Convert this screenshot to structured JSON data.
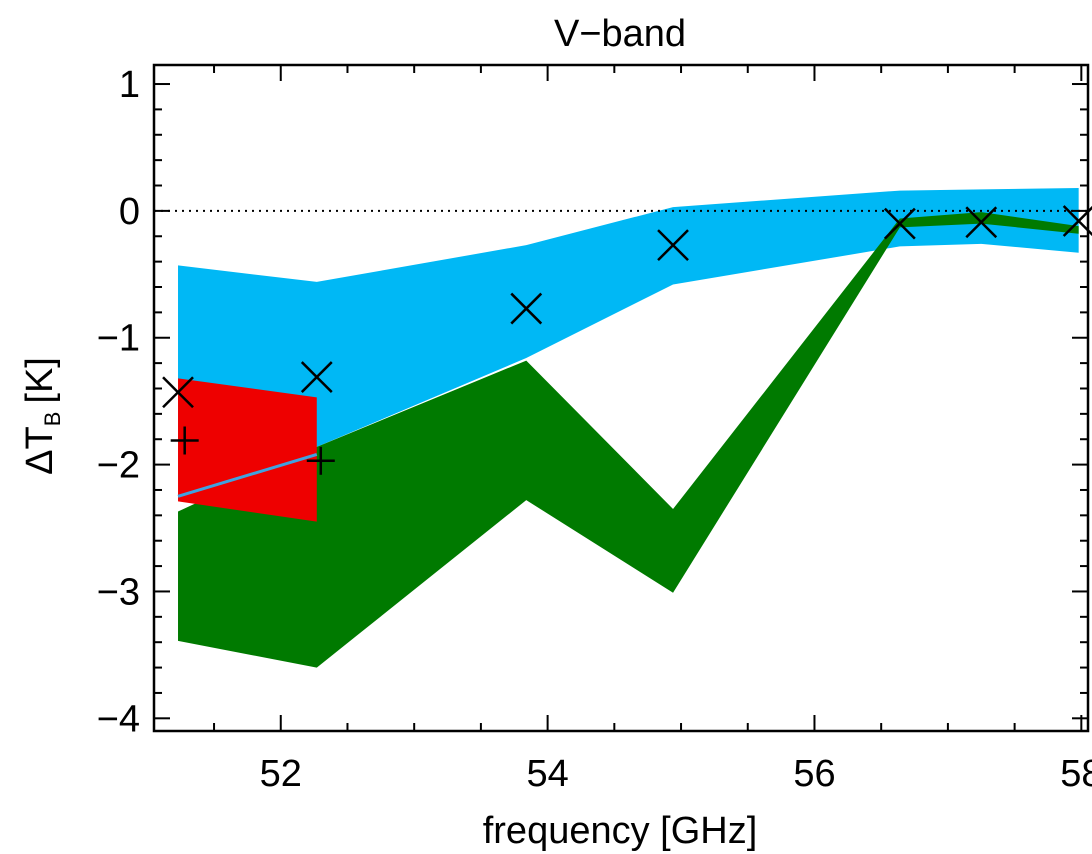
{
  "chart_data": {
    "type": "area",
    "title": "V−band",
    "xlabel": "frequency [GHz]",
    "ylabel": {
      "base": "ΔT",
      "sub": "B",
      "unit": "[K]"
    },
    "xlim": [
      51.05,
      58.05
    ],
    "ylim": [
      -4.1,
      1.15
    ],
    "xticks": [
      52,
      54,
      56,
      58
    ],
    "yticks": [
      -4,
      -3,
      -2,
      -1,
      0,
      1
    ],
    "x_minor_step": 0.5,
    "y_minor_step": 0.2,
    "zero_line": {
      "y": 0,
      "style": "dotted"
    },
    "bands": [
      {
        "color": "#00b8f5",
        "x": [
          51.23,
          52.27,
          53.84,
          54.94,
          56.64,
          57.25,
          57.98
        ],
        "upper": [
          -0.43,
          -0.56,
          -0.27,
          0.03,
          0.16,
          0.17,
          0.18
        ],
        "lower": [
          -2.12,
          -1.86,
          -1.16,
          -0.58,
          -0.28,
          -0.26,
          -0.33
        ]
      },
      {
        "color": "#007a00",
        "x": [
          51.23,
          52.27,
          53.84,
          54.94,
          56.64,
          57.25,
          57.98
        ],
        "upper": [
          -2.37,
          -1.86,
          -1.18,
          -2.35,
          -0.06,
          -0.01,
          -0.12
        ],
        "lower": [
          -3.39,
          -3.6,
          -2.28,
          -3.01,
          -0.13,
          -0.1,
          -0.18
        ]
      },
      {
        "color": "#ee0000",
        "x": [
          51.23,
          52.27
        ],
        "upper": [
          -1.32,
          -1.47
        ],
        "lower": [
          -2.29,
          -2.45
        ]
      }
    ],
    "lines": [
      {
        "color": "#3fa2e0",
        "x": [
          51.23,
          52.27
        ],
        "y": [
          -2.25,
          -1.92
        ]
      }
    ],
    "markers_x": {
      "symbol": "×",
      "x": [
        51.23,
        52.27,
        53.84,
        54.94,
        56.64,
        57.25,
        57.98
      ],
      "y": [
        -1.43,
        -1.31,
        -0.77,
        -0.27,
        -0.1,
        -0.09,
        -0.08
      ]
    },
    "markers_plus": {
      "symbol": "+",
      "x": [
        51.28,
        52.3
      ],
      "y": [
        -1.81,
        -1.97
      ]
    }
  }
}
